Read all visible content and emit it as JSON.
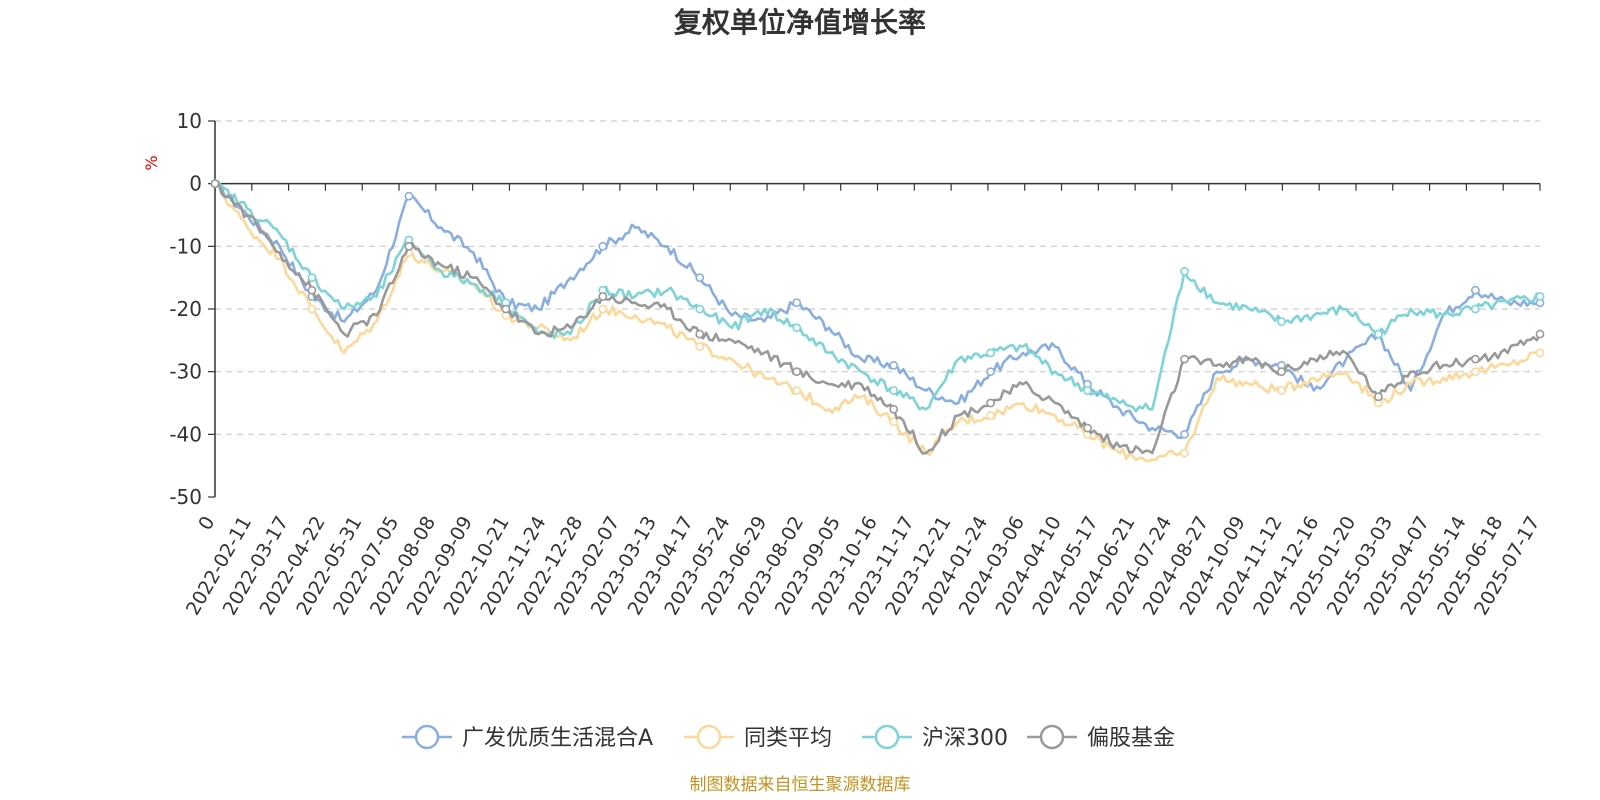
{
  "chart_data": {
    "type": "line",
    "title": "复权单位净值增长率",
    "ylabel": "%",
    "ylim": [
      -50,
      10
    ],
    "yticks": [
      10,
      0,
      -10,
      -20,
      -30,
      -40,
      -50
    ],
    "x_tick_labels": [
      "0",
      "2022-02-11",
      "2022-03-17",
      "2022-04-22",
      "2022-05-31",
      "2022-07-05",
      "2022-08-08",
      "2022-09-09",
      "2022-10-21",
      "2022-11-24",
      "2022-12-28",
      "2023-02-07",
      "2023-03-13",
      "2023-04-17",
      "2023-05-24",
      "2023-06-29",
      "2023-08-02",
      "2023-09-05",
      "2023-10-16",
      "2023-11-17",
      "2023-12-21",
      "2024-01-24",
      "2024-03-06",
      "2024-04-10",
      "2024-05-17",
      "2024-06-21",
      "2024-07-24",
      "2024-08-27",
      "2024-10-09",
      "2024-11-12",
      "2024-12-16",
      "2025-01-20",
      "2025-03-03",
      "2025-04-07",
      "2025-05-14",
      "2025-06-18",
      "2025-07-17"
    ],
    "grid": true,
    "legend_position": "bottom",
    "series": [
      {
        "name": "广发优质生活混合A",
        "color": "#8aaee0",
        "values": [
          0,
          -5,
          -10,
          -18,
          -22,
          -17,
          -2,
          -7,
          -11,
          -19,
          -20,
          -15,
          -10,
          -7,
          -10,
          -15,
          -21,
          -22,
          -19,
          -23,
          -28,
          -29,
          -33,
          -35,
          -30,
          -27,
          -26,
          -32,
          -36,
          -39,
          -40,
          -30,
          -28,
          -29,
          -33,
          -28,
          -24,
          -33,
          -21,
          -17,
          -19,
          -19
        ]
      },
      {
        "name": "同类平均",
        "color": "#fcd89a",
        "values": [
          0,
          -7,
          -12,
          -20,
          -27,
          -22,
          -11,
          -14,
          -16,
          -21,
          -23,
          -25,
          -20,
          -21,
          -23,
          -26,
          -28,
          -31,
          -33,
          -36,
          -34,
          -38,
          -43,
          -38,
          -37,
          -35,
          -37,
          -40,
          -43,
          -44,
          -43,
          -31,
          -32,
          -33,
          -31,
          -30,
          -35,
          -32,
          -31,
          -30,
          -29,
          -27
        ]
      },
      {
        "name": "沪深300",
        "color": "#7ed3d6",
        "values": [
          0,
          -4,
          -8,
          -15,
          -20,
          -18,
          -9,
          -14,
          -16,
          -19,
          -24,
          -24,
          -17,
          -18,
          -17,
          -20,
          -23,
          -20,
          -23,
          -27,
          -30,
          -33,
          -36,
          -28,
          -27,
          -26,
          -30,
          -33,
          -35,
          -36,
          -14,
          -19,
          -20,
          -22,
          -21,
          -20,
          -24,
          -20,
          -21,
          -20,
          -19,
          -18
        ]
      },
      {
        "name": "偏股基金",
        "color": "#999999",
        "values": [
          0,
          -5,
          -11,
          -17,
          -24,
          -21,
          -10,
          -13,
          -15,
          -20,
          -24,
          -23,
          -18,
          -19,
          -20,
          -24,
          -25,
          -27,
          -30,
          -32,
          -32,
          -36,
          -43,
          -37,
          -35,
          -32,
          -35,
          -39,
          -42,
          -43,
          -28,
          -29,
          -28,
          -30,
          -28,
          -27,
          -34,
          -30,
          -29,
          -28,
          -27,
          -24
        ]
      }
    ]
  },
  "footer": {
    "source": "制图数据来自恒生聚源数据库"
  }
}
